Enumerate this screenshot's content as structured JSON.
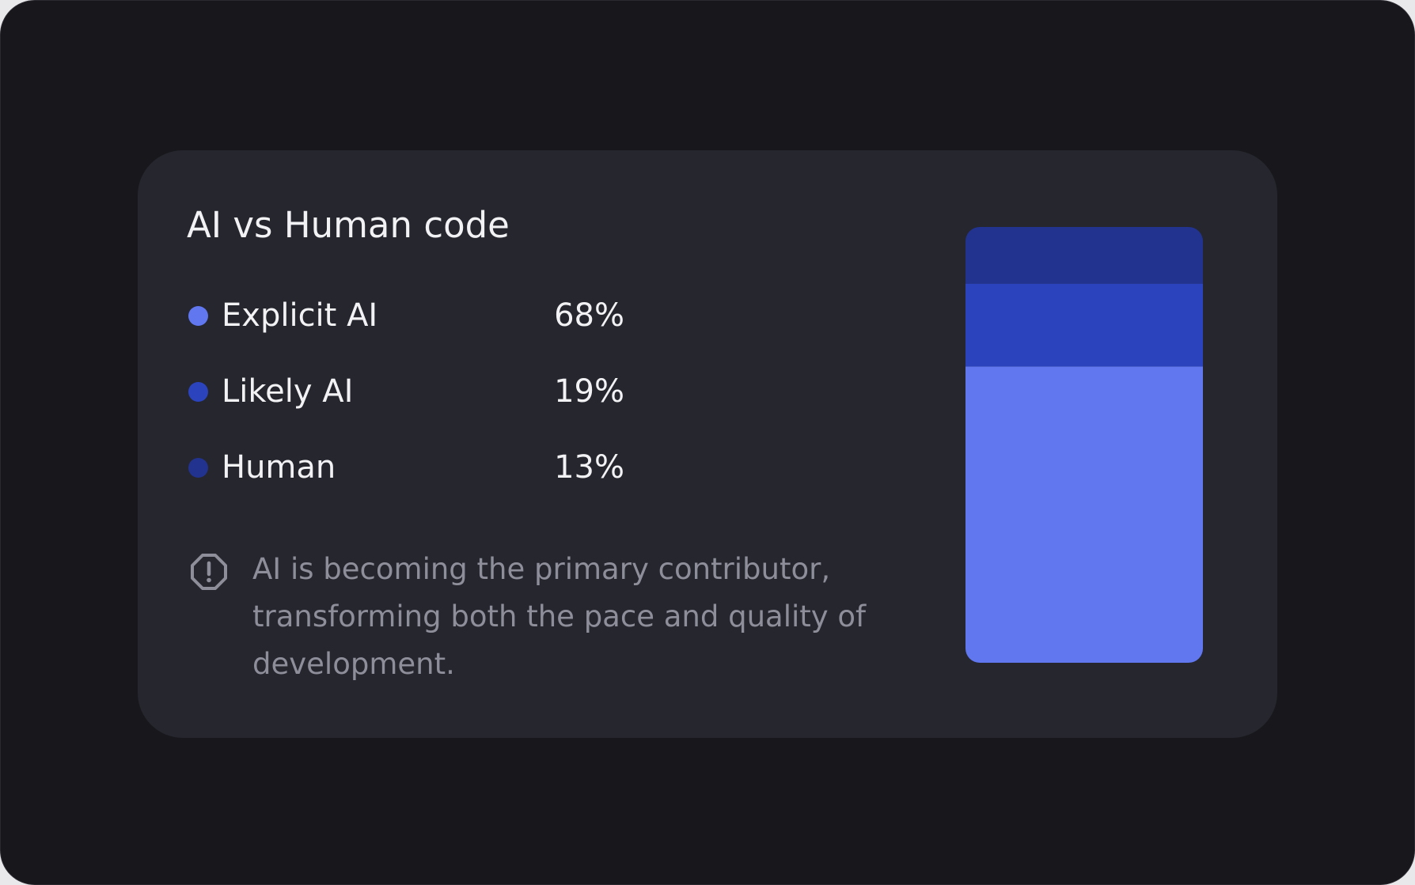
{
  "chart_data": {
    "type": "stacked-bar",
    "title": "AI vs Human code",
    "series": [
      {
        "name": "Explicit AI",
        "color": "#6077f0",
        "values": [
          68
        ],
        "value_labels": [
          "68%"
        ]
      },
      {
        "name": "Likely AI",
        "color": "#2b44be",
        "values": [
          19
        ],
        "value_labels": [
          "19%"
        ]
      },
      {
        "name": "Human",
        "color": "#22338f",
        "values": [
          13
        ],
        "value_labels": [
          "13%"
        ]
      }
    ],
    "ylim": [
      0,
      100
    ],
    "annotation": "AI is becoming the primary contributor, transforming both the pace and quality of development."
  }
}
